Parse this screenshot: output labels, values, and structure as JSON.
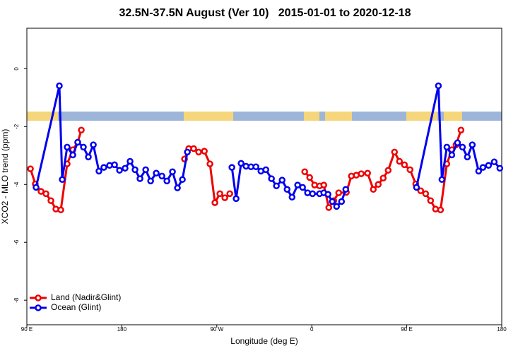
{
  "chart_data": {
    "type": "line",
    "title": "32.5N-37.5N August (Ver 10)   2015-01-01 to 2020-12-18",
    "xlabel": "Longitude (deg E)",
    "ylabel": "XCO2 - MLO trend (ppm)",
    "xlim": [
      90,
      540
    ],
    "ylim": [
      -8.85,
      1.4
    ],
    "xticks": [
      {
        "value": 90,
        "label": "90 E"
      },
      180,
      {
        "value": 270,
        "label": "90 W"
      },
      {
        "value": 360,
        "label": "0"
      },
      {
        "value": 450,
        "label": "90 E"
      },
      {
        "value": 540,
        "label": "180"
      }
    ],
    "yticks": [
      0,
      -2,
      -4,
      -6,
      -8
    ],
    "legend": "lower left",
    "series": [
      {
        "name": "Land (Nadir&Glint)",
        "color": "#ee0000",
        "x": [
          93.4,
          98,
          103.4,
          108.1,
          112.8,
          117.5,
          122.2,
          128.2,
          133.6,
          138.2,
          141.6,
          null,
          239.4,
          243.4,
          248.1,
          252.8,
          258.2,
          263.5,
          268.2,
          272.9,
          277.6,
          282.3,
          null,
          353.3,
          358,
          362.7,
          367.4,
          371.4,
          376.1,
          380.8,
          385.5,
          392.8,
          397.5,
          402.2,
          406.9,
          412.9,
          418.3,
          423,
          427.7,
          432.4,
          438.4,
          443.1,
          447.8,
          453.1,
          458.5,
          463.2,
          467.9,
          472.6,
          477.3,
          482,
          488,
          492.7,
          496.7,
          501.4
        ],
        "values": [
          -3.46,
          -3.98,
          -4.24,
          -4.32,
          -4.56,
          -4.85,
          -4.88,
          -3.29,
          -2.8,
          -2.54,
          -2.12,
          null,
          -3.12,
          -2.76,
          -2.76,
          -2.88,
          -2.85,
          -3.29,
          -4.63,
          -4.32,
          -4.46,
          -4.32,
          null,
          -3.56,
          -3.76,
          -4.02,
          -4.05,
          -4.02,
          -4.8,
          -4.56,
          -4.29,
          -4.27,
          -3.71,
          -3.68,
          -3.63,
          -3.61,
          -4.17,
          -4,
          -3.78,
          -3.51,
          -2.88,
          -3.2,
          -3.32,
          -3.49,
          -3.98,
          -4.22,
          -4.32,
          -4.56,
          -4.85,
          -4.88,
          -3.29,
          -2.8,
          -2.63,
          -2.12
        ]
      },
      {
        "name": "Ocean (Glint)",
        "color": "#0000ee",
        "x": [
          98.7,
          120.8,
          123.5,
          128.2,
          133.6,
          138.2,
          143.6,
          148.3,
          153,
          158.3,
          163,
          168.4,
          173.1,
          177.8,
          183.1,
          187.8,
          192.5,
          197.2,
          202.6,
          207.3,
          212.6,
          218,
          222.7,
          228,
          232.7,
          237.4,
          242.1,
          null,
          284.3,
          288.3,
          293,
          297.7,
          302.4,
          307.1,
          311.8,
          316.5,
          321.8,
          326.5,
          331.9,
          336.6,
          341.3,
          346.6,
          351.3,
          356,
          360.7,
          367.4,
          371.4,
          375.4,
          379.4,
          383.5,
          388.2,
          392.2,
          null,
          459.2,
          480,
          483.3,
          488,
          492.7,
          498.1,
          502.8,
          507.4,
          512.1,
          518.1,
          522.2,
          527.5,
          532.9,
          538.2
        ],
        "values": [
          -4.1,
          -0.59,
          -3.83,
          -2.71,
          -2.98,
          -2.54,
          -2.71,
          -3.05,
          -2.63,
          -3.54,
          -3.41,
          -3.34,
          -3.32,
          -3.51,
          -3.44,
          -3.2,
          -3.49,
          -3.8,
          -3.49,
          -3.88,
          -3.61,
          -3.71,
          -3.88,
          -3.56,
          -4.12,
          -3.83,
          -2.88,
          null,
          -3.41,
          -4.49,
          -3.27,
          -3.37,
          -3.39,
          -3.39,
          -3.54,
          -3.49,
          -3.8,
          -4.05,
          -3.85,
          -4.17,
          -4.44,
          -4.02,
          -4.1,
          -4.29,
          -4.32,
          -4.32,
          -4.29,
          -4.34,
          -4.59,
          -4.76,
          -4.59,
          -4.17,
          null,
          -4.1,
          -0.59,
          -3.83,
          -2.71,
          -2.98,
          -2.56,
          -2.71,
          -3.05,
          -2.63,
          -3.54,
          -3.41,
          -3.34,
          -3.22,
          -3.44
        ]
      }
    ]
  }
}
